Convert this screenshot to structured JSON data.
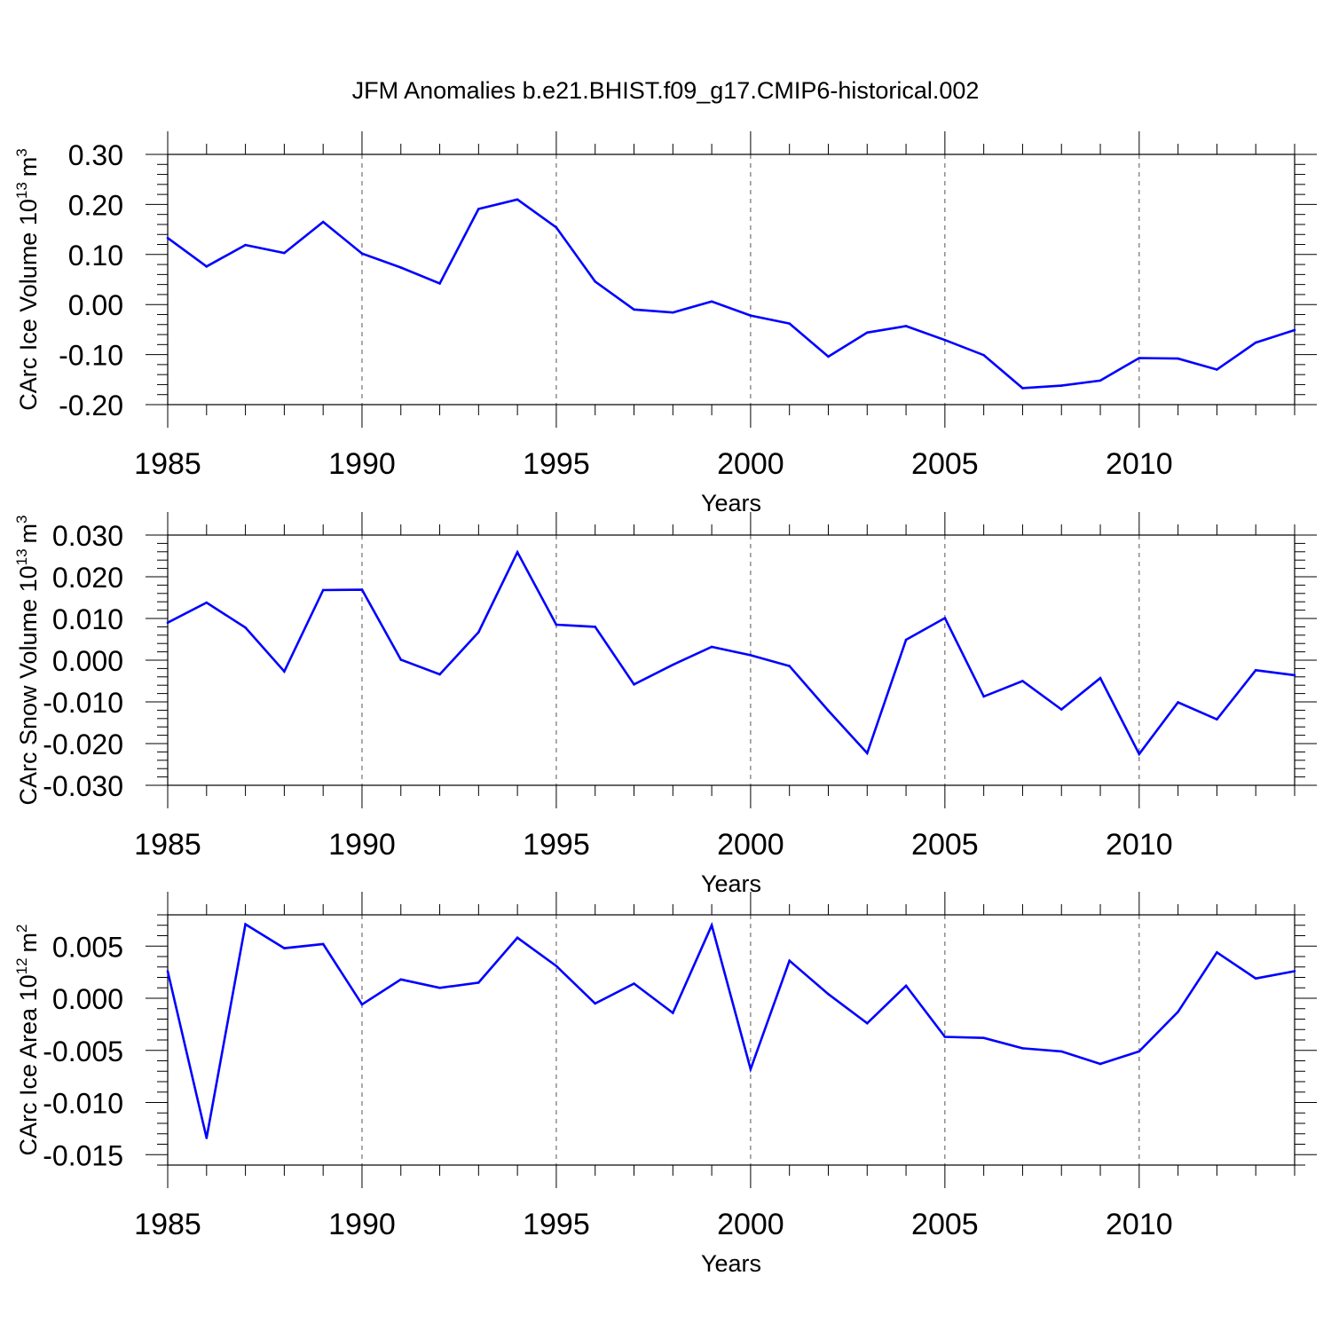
{
  "title": "JFM Anomalies b.e21.BHIST.f09_g17.CMIP6-historical.002",
  "colors": {
    "line": "#0000ff",
    "axis": "#000000",
    "grid": "#555555",
    "background": "#ffffff"
  },
  "chart_data": [
    {
      "type": "line",
      "title": "JFM Anomalies b.e21.BHIST.f09_g17.CMIP6-historical.002",
      "xlabel": "Years",
      "ylabel": "CArc Ice Volume 10",
      "ylabel_exp": "13",
      "ylabel_unit": "m",
      "ylabel_unit_exp": "3",
      "xlim": [
        1985,
        2014
      ],
      "ylim": [
        -0.2,
        0.3
      ],
      "x_ticks": [
        1985,
        1990,
        1995,
        2000,
        2005,
        2010
      ],
      "x_tick_labels": [
        "1985",
        "1990",
        "1995",
        "2000",
        "2005",
        "2010"
      ],
      "y_ticks": [
        -0.2,
        -0.1,
        0.0,
        0.1,
        0.2,
        0.3
      ],
      "y_tick_labels": [
        "-0.20",
        "-0.10",
        "0.00",
        "0.10",
        "0.20",
        "0.30"
      ],
      "grid": "vertical dashed at labeled years",
      "x": [
        1985,
        1986,
        1987,
        1988,
        1989,
        1990,
        1991,
        1992,
        1993,
        1994,
        1995,
        1996,
        1997,
        1998,
        1999,
        2000,
        2001,
        2002,
        2003,
        2004,
        2005,
        2006,
        2007,
        2008,
        2009,
        2010,
        2011,
        2012,
        2013,
        2014
      ],
      "series": [
        {
          "name": "CArc Ice Volume",
          "color": "#0000ff",
          "values": [
            0.133,
            0.076,
            0.119,
            0.103,
            0.165,
            0.102,
            0.074,
            0.042,
            0.191,
            0.21,
            0.154,
            0.046,
            -0.01,
            -0.016,
            0.006,
            -0.022,
            -0.038,
            -0.104,
            -0.056,
            -0.043,
            -0.071,
            -0.101,
            -0.167,
            -0.162,
            -0.152,
            -0.107,
            -0.108,
            -0.13,
            -0.076,
            -0.051
          ]
        }
      ]
    },
    {
      "type": "line",
      "xlabel": "Years",
      "ylabel": "CArc Snow Volume 10",
      "ylabel_exp": "13",
      "ylabel_unit": "m",
      "ylabel_unit_exp": "3",
      "xlim": [
        1985,
        2014
      ],
      "ylim": [
        -0.03,
        0.03
      ],
      "x_ticks": [
        1985,
        1990,
        1995,
        2000,
        2005,
        2010
      ],
      "x_tick_labels": [
        "1985",
        "1990",
        "1995",
        "2000",
        "2005",
        "2010"
      ],
      "y_ticks": [
        -0.03,
        -0.02,
        -0.01,
        0.0,
        0.01,
        0.02,
        0.03
      ],
      "y_tick_labels": [
        "-0.030",
        "-0.020",
        "-0.010",
        "0.000",
        "0.010",
        "0.020",
        "0.030"
      ],
      "grid": "vertical dashed at labeled years",
      "x": [
        1985,
        1986,
        1987,
        1988,
        1989,
        1990,
        1991,
        1992,
        1993,
        1994,
        1995,
        1996,
        1997,
        1998,
        1999,
        2000,
        2001,
        2002,
        2003,
        2004,
        2005,
        2006,
        2007,
        2008,
        2009,
        2010,
        2011,
        2012,
        2013,
        2014
      ],
      "series": [
        {
          "name": "CArc Snow Volume",
          "color": "#0000ff",
          "values": [
            0.009,
            0.0138,
            0.0078,
            -0.0027,
            0.0168,
            0.0169,
            0.0001,
            -0.0034,
            0.0067,
            0.0259,
            0.0085,
            0.008,
            -0.0058,
            -0.0011,
            0.0032,
            0.0012,
            -0.0014,
            -0.0121,
            -0.0223,
            0.0049,
            0.0101,
            -0.0087,
            -0.005,
            -0.0118,
            -0.0043,
            -0.0225,
            -0.0101,
            -0.0142,
            -0.0024,
            -0.0036
          ]
        }
      ]
    },
    {
      "type": "line",
      "xlabel": "Years",
      "ylabel": "CArc Ice Area 10",
      "ylabel_exp": "12",
      "ylabel_unit": "m",
      "ylabel_unit_exp": "2",
      "xlim": [
        1985,
        2014
      ],
      "ylim": [
        -0.016,
        0.008
      ],
      "x_ticks": [
        1985,
        1990,
        1995,
        2000,
        2005,
        2010
      ],
      "x_tick_labels": [
        "1985",
        "1990",
        "1995",
        "2000",
        "2005",
        "2010"
      ],
      "y_ticks": [
        -0.015,
        -0.01,
        -0.005,
        0.0,
        0.005
      ],
      "y_tick_labels": [
        "-0.015",
        "-0.010",
        "-0.005",
        "0.000",
        "0.005"
      ],
      "grid": "vertical dashed at labeled years",
      "x": [
        1985,
        1986,
        1987,
        1988,
        1989,
        1990,
        1991,
        1992,
        1993,
        1994,
        1995,
        1996,
        1997,
        1998,
        1999,
        2000,
        2001,
        2002,
        2003,
        2004,
        2005,
        2006,
        2007,
        2008,
        2009,
        2010,
        2011,
        2012,
        2013,
        2014
      ],
      "series": [
        {
          "name": "CArc Ice Area",
          "color": "#0000ff",
          "values": [
            0.0026,
            -0.0134,
            0.0071,
            0.0048,
            0.0052,
            -0.0006,
            0.0018,
            0.001,
            0.0015,
            0.0058,
            0.0031,
            -0.0005,
            0.0014,
            -0.0014,
            0.007,
            -0.0068,
            0.0036,
            0.0004,
            -0.0024,
            0.0012,
            -0.0037,
            -0.0038,
            -0.0048,
            -0.0051,
            -0.0063,
            -0.0051,
            -0.0013,
            0.0044,
            0.0019,
            0.0026
          ]
        }
      ]
    }
  ]
}
